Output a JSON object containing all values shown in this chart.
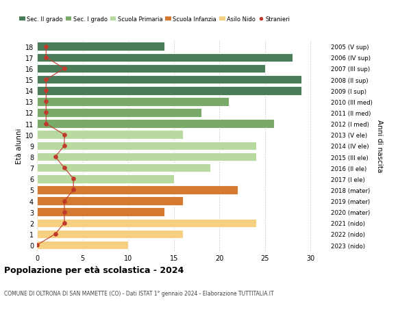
{
  "ages": [
    18,
    17,
    16,
    15,
    14,
    13,
    12,
    11,
    10,
    9,
    8,
    7,
    6,
    5,
    4,
    3,
    2,
    1,
    0
  ],
  "years": [
    "2005 (V sup)",
    "2006 (IV sup)",
    "2007 (III sup)",
    "2008 (II sup)",
    "2009 (I sup)",
    "2010 (III med)",
    "2011 (II med)",
    "2012 (I med)",
    "2013 (V ele)",
    "2014 (IV ele)",
    "2015 (III ele)",
    "2016 (II ele)",
    "2017 (I ele)",
    "2018 (mater)",
    "2019 (mater)",
    "2020 (mater)",
    "2021 (nido)",
    "2022 (nido)",
    "2023 (nido)"
  ],
  "bar_values": [
    14,
    28,
    25,
    29,
    29,
    21,
    18,
    26,
    16,
    24,
    24,
    19,
    15,
    22,
    16,
    14,
    24,
    16,
    10
  ],
  "stranieri": [
    1,
    1,
    3,
    1,
    1,
    1,
    1,
    1,
    3,
    3,
    2,
    3,
    4,
    4,
    3,
    3,
    3,
    2,
    0
  ],
  "bar_colors": [
    "#4a7c59",
    "#4a7c59",
    "#4a7c59",
    "#4a7c59",
    "#4a7c59",
    "#7aaa6a",
    "#7aaa6a",
    "#7aaa6a",
    "#b8d9a0",
    "#b8d9a0",
    "#b8d9a0",
    "#b8d9a0",
    "#b8d9a0",
    "#d47a30",
    "#d47a30",
    "#d47a30",
    "#f5d080",
    "#f5d080",
    "#f5d080"
  ],
  "legend_labels": [
    "Sec. II grado",
    "Sec. I grado",
    "Scuola Primaria",
    "Scuola Infanzia",
    "Asilo Nido",
    "Stranieri"
  ],
  "legend_colors": [
    "#4a7c59",
    "#7aaa6a",
    "#b8d9a0",
    "#d47a30",
    "#f5d080",
    "#c0392b"
  ],
  "title": "Popolazione per età scolastica - 2024",
  "subtitle": "COMUNE DI OLTRONA DI SAN MAMETTE (CO) - Dati ISTAT 1° gennaio 2024 - Elaborazione TUTTITALIA.IT",
  "ylabel_left": "Età alunni",
  "ylabel_right": "Anni di nascita",
  "stranieri_color": "#c0392b",
  "line_color": "#c0392b",
  "bg_color": "#ffffff",
  "xlim": [
    0,
    32
  ],
  "grid_color": "#cccccc"
}
